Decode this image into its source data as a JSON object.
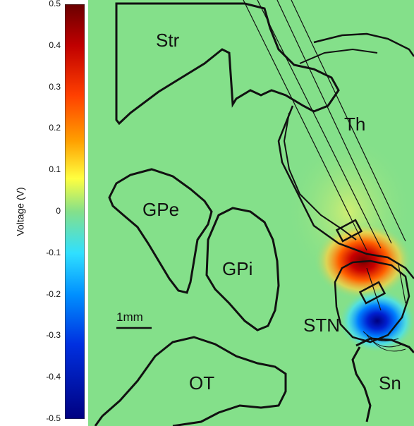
{
  "colorbar": {
    "label": "Voltage (V)",
    "min": -0.5,
    "max": 0.5,
    "ticks": [
      "0.5",
      "0.4",
      "0.3",
      "0.2",
      "0.1",
      "0",
      "-0.1",
      "-0.2",
      "-0.3",
      "-0.4",
      "-0.5"
    ],
    "colors": [
      "#7a0000",
      "#c80000",
      "#ff5a00",
      "#ffc800",
      "#ffff50",
      "#84e08a",
      "#40e8ff",
      "#0078ff",
      "#0020d0",
      "#000090"
    ]
  },
  "regions": {
    "str": "Str",
    "th": "Th",
    "gpe": "GPe",
    "gpi": "GPi",
    "stn": "STN",
    "sn": "Sn",
    "ot": "OT"
  },
  "scale_bar": {
    "label": "1mm"
  },
  "field": {
    "background": "#84e08a",
    "outline": "#111111"
  }
}
